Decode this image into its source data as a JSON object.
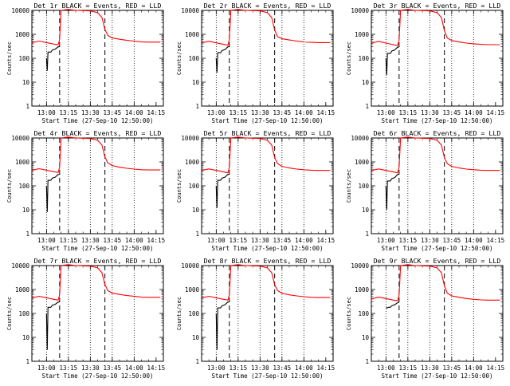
{
  "chart_data": [
    {
      "type": "line",
      "title": "Det 1r BLACK = Events, RED = LLD",
      "xlabel": "Start Time (27-Sep-10 12:50:00)",
      "ylabel": "Counts/sec",
      "xtick_labels": [
        "13:00",
        "13:15",
        "13:30",
        "13:45",
        "14:00",
        "14:15"
      ],
      "ytick_labels": [
        "1",
        "10",
        "100",
        "1000",
        "10000"
      ],
      "ylim": [
        1,
        10000
      ],
      "y_scale": "log",
      "x_range_minutes_after_start": [
        0,
        90
      ],
      "vertical_lines_dotted_minutes": [
        10,
        25,
        40,
        55,
        70
      ],
      "vertical_lines_dashed_minutes": [
        19,
        50
      ],
      "series": [
        {
          "name": "BLACK = Events",
          "color": "#000000",
          "x": [
            10,
            10.5,
            11,
            11.5,
            13,
            14,
            16,
            18,
            18.6,
            19
          ],
          "y": [
            100,
            30,
            180,
            180,
            180,
            220,
            240,
            300,
            300,
            310
          ]
        },
        {
          "name": "RED = LLD",
          "color": "#ff0000",
          "x": [
            0,
            5,
            10,
            15,
            18,
            19,
            20,
            25,
            30,
            35,
            40,
            45,
            48,
            50,
            52,
            55,
            60,
            65,
            70,
            75,
            80,
            85,
            88
          ],
          "y": [
            450,
            520,
            450,
            390,
            360,
            600,
            10000,
            11000,
            10000,
            9800,
            9500,
            8000,
            5000,
            1600,
            900,
            700,
            620,
            560,
            520,
            480,
            470,
            470,
            470
          ]
        }
      ]
    },
    {
      "type": "line",
      "title": "Det 2r BLACK = Events, RED = LLD",
      "xlabel": "Start Time (27-Sep-10 12:50:00)",
      "ylabel": "Counts/sec",
      "xtick_labels": [
        "13:00",
        "13:15",
        "13:30",
        "13:45",
        "14:00",
        "14:15"
      ],
      "ytick_labels": [
        "1",
        "10",
        "100",
        "1000",
        "10000"
      ],
      "ylim": [
        1,
        10000
      ],
      "y_scale": "log",
      "x_range_minutes_after_start": [
        0,
        90
      ],
      "vertical_lines_dotted_minutes": [
        10,
        25,
        40,
        55,
        70
      ],
      "vertical_lines_dashed_minutes": [
        19,
        50
      ],
      "series": [
        {
          "name": "BLACK = Events",
          "color": "#000000",
          "x": [
            10,
            10.5,
            11,
            11.5,
            13,
            14,
            16,
            18,
            18.6,
            19
          ],
          "y": [
            100,
            25,
            170,
            170,
            170,
            210,
            230,
            300,
            300,
            320
          ]
        },
        {
          "name": "RED = LLD",
          "color": "#ff0000",
          "x": [
            0,
            5,
            10,
            15,
            18,
            19,
            20,
            25,
            30,
            35,
            40,
            45,
            48,
            50,
            52,
            55,
            60,
            65,
            70,
            75,
            80,
            85,
            88
          ],
          "y": [
            440,
            510,
            440,
            380,
            350,
            600,
            10000,
            11000,
            10000,
            9800,
            9500,
            8000,
            5000,
            1500,
            800,
            650,
            580,
            520,
            480,
            460,
            450,
            450,
            450
          ]
        }
      ]
    },
    {
      "type": "line",
      "title": "Det 3r BLACK = Events, RED = LLD",
      "xlabel": "Start Time (27-Sep-10 12:50:00)",
      "ylabel": "Counts/sec",
      "xtick_labels": [
        "13:00",
        "13:15",
        "13:30",
        "13:45",
        "14:00",
        "14:15"
      ],
      "ytick_labels": [
        "1",
        "10",
        "100",
        "1000",
        "10000"
      ],
      "ylim": [
        1,
        10000
      ],
      "y_scale": "log",
      "x_range_minutes_after_start": [
        0,
        90
      ],
      "vertical_lines_dotted_minutes": [
        10,
        25,
        40,
        55,
        70
      ],
      "vertical_lines_dashed_minutes": [
        19,
        50
      ],
      "series": [
        {
          "name": "BLACK = Events",
          "color": "#000000",
          "x": [
            10,
            10.5,
            11,
            11.5,
            13,
            14,
            16,
            18,
            18.6,
            19
          ],
          "y": [
            100,
            20,
            160,
            160,
            160,
            200,
            220,
            290,
            290,
            300
          ]
        },
        {
          "name": "RED = LLD",
          "color": "#ff0000",
          "x": [
            0,
            5,
            10,
            15,
            18,
            19,
            20,
            25,
            30,
            35,
            40,
            45,
            48,
            50,
            52,
            55,
            60,
            65,
            70,
            75,
            80,
            85,
            88
          ],
          "y": [
            430,
            500,
            430,
            370,
            340,
            580,
            10000,
            11000,
            10000,
            9800,
            9500,
            8000,
            5000,
            1400,
            700,
            550,
            480,
            430,
            400,
            380,
            370,
            370,
            370
          ]
        }
      ]
    },
    {
      "type": "line",
      "title": "Det 4r BLACK = Events, RED = LLD",
      "xlabel": "Start Time (27-Sep-10 12:50:00)",
      "ylabel": "Counts/sec",
      "xtick_labels": [
        "13:00",
        "13:15",
        "13:30",
        "13:45",
        "14:00",
        "14:15"
      ],
      "ytick_labels": [
        "1",
        "10",
        "100",
        "1000",
        "10000"
      ],
      "ylim": [
        1,
        10000
      ],
      "y_scale": "log",
      "x_range_minutes_after_start": [
        0,
        90
      ],
      "vertical_lines_dotted_minutes": [
        10,
        25,
        40,
        55,
        70
      ],
      "vertical_lines_dashed_minutes": [
        19,
        50
      ],
      "series": [
        {
          "name": "BLACK = Events",
          "color": "#000000",
          "x": [
            10,
            10.5,
            11,
            11.5,
            13,
            14,
            16,
            18,
            18.6,
            19
          ],
          "y": [
            100,
            8,
            170,
            170,
            170,
            210,
            230,
            300,
            300,
            310
          ]
        },
        {
          "name": "RED = LLD",
          "color": "#ff0000",
          "x": [
            0,
            5,
            10,
            15,
            18,
            19,
            20,
            25,
            30,
            35,
            40,
            45,
            48,
            50,
            52,
            55,
            60,
            65,
            70,
            75,
            80,
            85,
            88
          ],
          "y": [
            450,
            520,
            450,
            390,
            360,
            600,
            10000,
            11000,
            10000,
            9800,
            9500,
            8000,
            5000,
            1600,
            900,
            700,
            600,
            540,
            500,
            470,
            460,
            460,
            460
          ]
        }
      ]
    },
    {
      "type": "line",
      "title": "Det 5r BLACK = Events, RED = LLD",
      "xlabel": "Start Time (27-Sep-10 12:50:00)",
      "ylabel": "Counts/sec",
      "xtick_labels": [
        "13:00",
        "13:15",
        "13:30",
        "13:45",
        "14:00",
        "14:15"
      ],
      "ytick_labels": [
        "1",
        "10",
        "100",
        "1000",
        "10000"
      ],
      "ylim": [
        1,
        10000
      ],
      "y_scale": "log",
      "x_range_minutes_after_start": [
        0,
        90
      ],
      "vertical_lines_dotted_minutes": [
        10,
        25,
        40,
        55,
        70
      ],
      "vertical_lines_dashed_minutes": [
        19,
        50
      ],
      "series": [
        {
          "name": "BLACK = Events",
          "color": "#000000",
          "x": [
            10,
            10.5,
            11,
            11.5,
            13,
            14,
            16,
            18,
            18.6,
            19
          ],
          "y": [
            100,
            12,
            170,
            170,
            170,
            210,
            230,
            300,
            300,
            310
          ]
        },
        {
          "name": "RED = LLD",
          "color": "#ff0000",
          "x": [
            0,
            5,
            10,
            15,
            18,
            19,
            20,
            25,
            30,
            35,
            40,
            45,
            48,
            50,
            52,
            55,
            60,
            65,
            70,
            75,
            80,
            85,
            88
          ],
          "y": [
            440,
            510,
            440,
            380,
            350,
            600,
            10000,
            11000,
            10000,
            9800,
            9500,
            8000,
            5000,
            1500,
            850,
            650,
            560,
            500,
            470,
            450,
            440,
            440,
            440
          ]
        }
      ]
    },
    {
      "type": "line",
      "title": "Det 6r BLACK = Events, RED = LLD",
      "xlabel": "Start Time (27-Sep-10 12:50:00)",
      "ylabel": "Counts/sec",
      "xtick_labels": [
        "13:00",
        "13:15",
        "13:30",
        "13:45",
        "14:00",
        "14:15"
      ],
      "ytick_labels": [
        "1",
        "10",
        "100",
        "1000",
        "10000"
      ],
      "ylim": [
        1,
        10000
      ],
      "y_scale": "log",
      "x_range_minutes_after_start": [
        0,
        90
      ],
      "vertical_lines_dotted_minutes": [
        10,
        25,
        40,
        55,
        70
      ],
      "vertical_lines_dashed_minutes": [
        19,
        50
      ],
      "series": [
        {
          "name": "BLACK = Events",
          "color": "#000000",
          "x": [
            10,
            10.5,
            11,
            11.5,
            13,
            14,
            16,
            18,
            18.6,
            19
          ],
          "y": [
            100,
            10,
            160,
            160,
            160,
            200,
            220,
            300,
            300,
            310
          ]
        },
        {
          "name": "RED = LLD",
          "color": "#ff0000",
          "x": [
            0,
            5,
            10,
            15,
            18,
            19,
            20,
            25,
            30,
            35,
            40,
            45,
            48,
            50,
            52,
            55,
            60,
            65,
            70,
            75,
            80,
            85,
            88
          ],
          "y": [
            440,
            510,
            440,
            380,
            350,
            600,
            10000,
            11000,
            10000,
            9800,
            9500,
            8000,
            5000,
            1500,
            850,
            650,
            560,
            500,
            470,
            450,
            440,
            440,
            440
          ]
        }
      ]
    },
    {
      "type": "line",
      "title": "Det 7r BLACK = Events, RED = LLD",
      "xlabel": "Start Time (27-Sep-10 12:50:00)",
      "ylabel": "Counts/sec",
      "xtick_labels": [
        "13:00",
        "13:15",
        "13:30",
        "13:45",
        "14:00",
        "14:15"
      ],
      "ytick_labels": [
        "1",
        "10",
        "100",
        "1000",
        "10000"
      ],
      "ylim": [
        1,
        10000
      ],
      "y_scale": "log",
      "x_range_minutes_after_start": [
        0,
        90
      ],
      "vertical_lines_dotted_minutes": [
        10,
        25,
        40,
        55,
        70
      ],
      "vertical_lines_dashed_minutes": [
        19,
        50
      ],
      "series": [
        {
          "name": "BLACK = Events",
          "color": "#000000",
          "x": [
            10,
            10.5,
            11,
            11.5,
            13,
            14,
            16,
            18,
            18.6,
            19
          ],
          "y": [
            100,
            3,
            180,
            180,
            180,
            220,
            240,
            300,
            300,
            320
          ]
        },
        {
          "name": "RED = LLD",
          "color": "#ff0000",
          "x": [
            0,
            5,
            10,
            15,
            18,
            19,
            20,
            25,
            30,
            35,
            40,
            45,
            48,
            50,
            52,
            55,
            60,
            65,
            70,
            75,
            80,
            85,
            88
          ],
          "y": [
            450,
            520,
            450,
            390,
            360,
            600,
            10000,
            11000,
            10000,
            9800,
            9500,
            8000,
            5000,
            1600,
            900,
            700,
            620,
            560,
            520,
            480,
            470,
            470,
            470
          ]
        }
      ]
    },
    {
      "type": "line",
      "title": "Det 8r BLACK = Events, RED = LLD",
      "xlabel": "Start Time (27-Sep-10 12:50:00)",
      "ylabel": "Counts/sec",
      "xtick_labels": [
        "13:00",
        "13:15",
        "13:30",
        "13:45",
        "14:00",
        "14:15"
      ],
      "ytick_labels": [
        "1",
        "10",
        "100",
        "1000",
        "10000"
      ],
      "ylim": [
        1,
        10000
      ],
      "y_scale": "log",
      "x_range_minutes_after_start": [
        0,
        90
      ],
      "vertical_lines_dotted_minutes": [
        10,
        25,
        40,
        55,
        70
      ],
      "vertical_lines_dashed_minutes": [
        19,
        50
      ],
      "series": [
        {
          "name": "BLACK = Events",
          "color": "#000000",
          "x": [
            10,
            10.5,
            11,
            11.5,
            13,
            14,
            16,
            18,
            18.6,
            19
          ],
          "y": [
            100,
            3,
            170,
            170,
            170,
            210,
            230,
            300,
            300,
            320
          ]
        },
        {
          "name": "RED = LLD",
          "color": "#ff0000",
          "x": [
            0,
            5,
            10,
            15,
            18,
            19,
            20,
            25,
            30,
            35,
            40,
            45,
            48,
            50,
            52,
            55,
            60,
            65,
            70,
            75,
            80,
            85,
            88
          ],
          "y": [
            450,
            520,
            450,
            390,
            360,
            600,
            10000,
            11000,
            10000,
            9800,
            9500,
            8000,
            5000,
            1600,
            900,
            700,
            600,
            540,
            500,
            470,
            460,
            460,
            460
          ]
        }
      ]
    },
    {
      "type": "line",
      "title": "Det 9r BLACK = Events, RED = LLD",
      "xlabel": "Start Time (27-Sep-10 12:50:00)",
      "ylabel": "Counts/sec",
      "xtick_labels": [
        "13:00",
        "13:15",
        "13:30",
        "13:45",
        "14:00",
        "14:15"
      ],
      "ytick_labels": [
        "1",
        "10",
        "100",
        "1000",
        "10000"
      ],
      "ylim": [
        1,
        10000
      ],
      "y_scale": "log",
      "x_range_minutes_after_start": [
        0,
        90
      ],
      "vertical_lines_dotted_minutes": [
        10,
        25,
        40,
        55,
        70
      ],
      "vertical_lines_dashed_minutes": [
        19,
        50
      ],
      "series": [
        {
          "name": "BLACK = Events",
          "color": "#000000",
          "x": [
            10,
            10.5,
            11,
            11.5,
            13,
            14,
            16,
            18,
            18.6,
            19
          ],
          "y": [
            170,
            170,
            170,
            180,
            180,
            210,
            230,
            280,
            290,
            300
          ]
        },
        {
          "name": "RED = LLD",
          "color": "#ff0000",
          "x": [
            0,
            5,
            10,
            15,
            18,
            19,
            20,
            25,
            30,
            35,
            40,
            45,
            48,
            50,
            52,
            55,
            60,
            65,
            70,
            75,
            80,
            85,
            88
          ],
          "y": [
            400,
            480,
            420,
            360,
            340,
            560,
            10000,
            11000,
            10000,
            9800,
            9500,
            8000,
            5000,
            1400,
            700,
            540,
            470,
            420,
            390,
            370,
            360,
            360,
            360
          ]
        }
      ]
    }
  ]
}
